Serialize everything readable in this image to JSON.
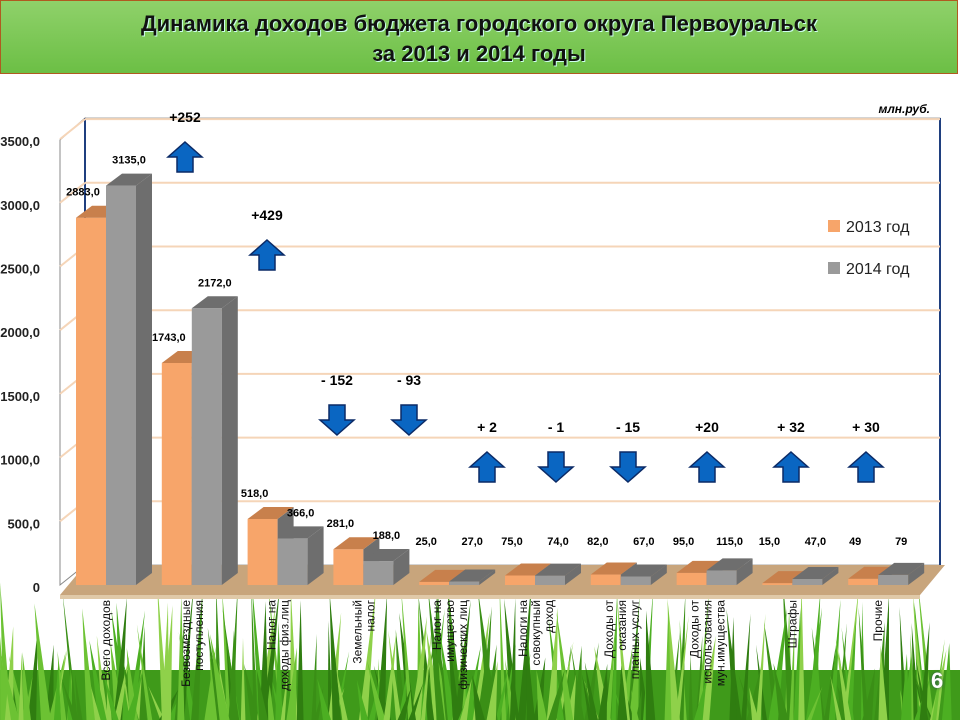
{
  "title": {
    "line1": "Динамика доходов бюджета городского округа Первоуральск",
    "line2": "за 2013 и 2014 годы"
  },
  "unit": "млн.руб.",
  "slide_number": "6",
  "chart_data": {
    "type": "bar",
    "categories": [
      "Всего доходов",
      "Безвозмездные поступления",
      "Налог на доходы физ.лиц",
      "Земельный налог",
      "Налог на имущество физических лиц",
      "Налоги на совокупный доход",
      "Доходы от оказания платных услуг",
      "Доходы от использования мун.имущества",
      "Штрафы",
      "Прочие"
    ],
    "series": [
      {
        "name": "2013 год",
        "color": "#f7a56a",
        "values": [
          2883,
          1743,
          518,
          281,
          25,
          75,
          82,
          95,
          15,
          49
        ],
        "labels": [
          "2883,0",
          "1743,0",
          "518,0",
          "281,0",
          "25,0",
          "75,0",
          "82,0",
          "95,0",
          "15,0",
          "49"
        ]
      },
      {
        "name": "2014 год",
        "color": "#9a9a9a",
        "values": [
          3135,
          2172,
          366,
          188,
          27,
          74,
          67,
          115,
          47,
          79
        ],
        "labels": [
          "3135,0",
          "2172,0",
          "366,0",
          "188,0",
          "27,0",
          "74,0",
          "67,0",
          "115,0",
          "47,0",
          "79"
        ]
      }
    ],
    "changes": [
      {
        "label": "+252",
        "dir": "up"
      },
      {
        "label": "+429",
        "dir": "up"
      },
      {
        "label": "- 152",
        "dir": "down"
      },
      {
        "label": "- 93",
        "dir": "down"
      },
      {
        "label": "+ 2",
        "dir": "up"
      },
      {
        "label": "- 1",
        "dir": "down"
      },
      {
        "label": "- 15",
        "dir": "down"
      },
      {
        "label": "+20",
        "dir": "up"
      },
      {
        "label": "+ 32",
        "dir": "up"
      },
      {
        "label": "+ 30",
        "dir": "up"
      }
    ],
    "yticks": [
      "0",
      "500,0",
      "1000,0",
      "1500,0",
      "2000,0",
      "2500,0",
      "3000,0",
      "3500,0"
    ],
    "ylim": [
      0,
      3500
    ],
    "legend": "right",
    "grid": true
  }
}
